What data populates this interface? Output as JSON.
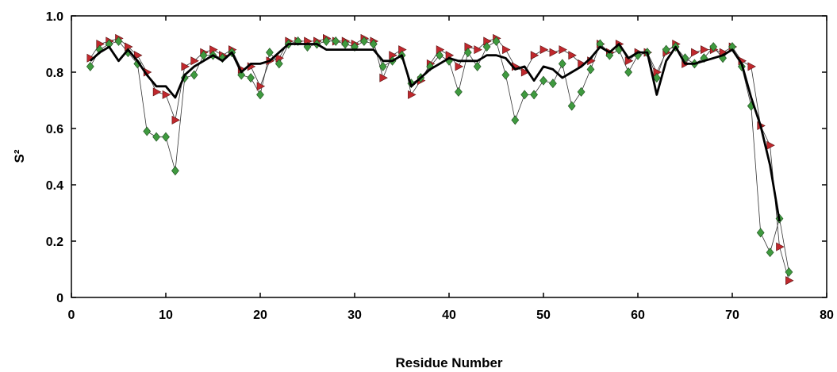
{
  "chart_data": {
    "type": "line",
    "xlabel": "Residue Number",
    "ylabel": "S²",
    "xlim": [
      0,
      80
    ],
    "ylim": [
      0,
      1.0
    ],
    "xticks": [
      "0",
      "10",
      "20",
      "30",
      "40",
      "50",
      "60",
      "70",
      "80"
    ],
    "yticks": [
      "0",
      "0.2",
      "0.4",
      "0.6",
      "0.8",
      "1.0"
    ],
    "grid": false,
    "legend": "none",
    "series": [
      {
        "style": "thick black line",
        "color": "#000000",
        "x": [
          2,
          3,
          4,
          5,
          6,
          7,
          8,
          9,
          10,
          11,
          12,
          13,
          14,
          15,
          16,
          17,
          18,
          19,
          20,
          21,
          22,
          23,
          24,
          25,
          26,
          27,
          28,
          29,
          30,
          31,
          32,
          33,
          34,
          35,
          36,
          37,
          38,
          39,
          40,
          41,
          42,
          43,
          44,
          45,
          46,
          47,
          48,
          49,
          50,
          51,
          52,
          53,
          54,
          55,
          56,
          57,
          58,
          59,
          60,
          61,
          62,
          63,
          64,
          65,
          66,
          67,
          68,
          69,
          70,
          71,
          72,
          73,
          74,
          75
        ],
        "y": [
          0.84,
          0.87,
          0.89,
          0.84,
          0.88,
          0.84,
          0.79,
          0.75,
          0.75,
          0.71,
          0.79,
          0.82,
          0.84,
          0.86,
          0.84,
          0.87,
          0.8,
          0.83,
          0.83,
          0.84,
          0.87,
          0.9,
          0.9,
          0.9,
          0.9,
          0.88,
          0.88,
          0.88,
          0.88,
          0.88,
          0.88,
          0.84,
          0.84,
          0.86,
          0.75,
          0.78,
          0.81,
          0.83,
          0.85,
          0.84,
          0.84,
          0.84,
          0.86,
          0.86,
          0.85,
          0.81,
          0.82,
          0.77,
          0.82,
          0.81,
          0.78,
          0.8,
          0.82,
          0.85,
          0.89,
          0.87,
          0.9,
          0.85,
          0.87,
          0.87,
          0.72,
          0.84,
          0.89,
          0.83,
          0.83,
          0.84,
          0.85,
          0.86,
          0.88,
          0.83,
          0.71,
          0.61,
          0.47,
          0.27
        ]
      },
      {
        "style": "green diamonds",
        "color": "#3f9a3f",
        "x": [
          2,
          3,
          4,
          5,
          6,
          7,
          8,
          9,
          10,
          11,
          12,
          13,
          14,
          15,
          16,
          17,
          18,
          19,
          20,
          21,
          22,
          23,
          24,
          25,
          26,
          27,
          28,
          29,
          30,
          31,
          32,
          33,
          34,
          35,
          36,
          37,
          38,
          39,
          40,
          41,
          42,
          43,
          44,
          45,
          46,
          47,
          48,
          49,
          50,
          51,
          52,
          53,
          54,
          55,
          56,
          57,
          58,
          59,
          60,
          61,
          62,
          63,
          64,
          65,
          66,
          67,
          68,
          69,
          70,
          71,
          72,
          73,
          74,
          75,
          76
        ],
        "y": [
          0.82,
          0.88,
          0.9,
          0.91,
          0.87,
          0.83,
          0.59,
          0.57,
          0.57,
          0.45,
          0.78,
          0.79,
          0.86,
          0.86,
          0.85,
          0.87,
          0.79,
          0.78,
          0.72,
          0.87,
          0.83,
          0.9,
          0.91,
          0.89,
          0.9,
          0.91,
          0.91,
          0.9,
          0.89,
          0.91,
          0.9,
          0.82,
          0.84,
          0.86,
          0.76,
          0.78,
          0.82,
          0.86,
          0.84,
          0.73,
          0.87,
          0.82,
          0.89,
          0.91,
          0.79,
          0.63,
          0.72,
          0.72,
          0.77,
          0.76,
          0.83,
          0.68,
          0.73,
          0.81,
          0.9,
          0.86,
          0.88,
          0.8,
          0.86,
          0.87,
          0.78,
          0.88,
          0.89,
          0.85,
          0.83,
          0.85,
          0.89,
          0.85,
          0.89,
          0.82,
          0.68,
          0.23,
          0.16,
          0.28,
          0.09
        ]
      },
      {
        "style": "red triangles",
        "color": "#c0282d",
        "x": [
          2,
          3,
          4,
          5,
          6,
          7,
          8,
          9,
          10,
          11,
          12,
          13,
          14,
          15,
          16,
          17,
          18,
          19,
          20,
          21,
          22,
          23,
          24,
          25,
          26,
          27,
          28,
          29,
          30,
          31,
          32,
          33,
          34,
          35,
          36,
          37,
          38,
          39,
          40,
          41,
          42,
          43,
          44,
          45,
          46,
          47,
          48,
          49,
          50,
          51,
          52,
          53,
          54,
          55,
          56,
          57,
          58,
          59,
          60,
          61,
          62,
          63,
          64,
          65,
          66,
          67,
          68,
          69,
          70,
          71,
          72,
          73,
          74,
          75,
          76
        ],
        "y": [
          0.85,
          0.9,
          0.91,
          0.92,
          0.89,
          0.86,
          0.8,
          0.73,
          0.72,
          0.63,
          0.82,
          0.84,
          0.87,
          0.88,
          0.86,
          0.88,
          0.81,
          0.82,
          0.75,
          0.84,
          0.85,
          0.91,
          0.91,
          0.91,
          0.91,
          0.92,
          0.91,
          0.91,
          0.9,
          0.92,
          0.91,
          0.78,
          0.86,
          0.88,
          0.72,
          0.77,
          0.83,
          0.88,
          0.86,
          0.82,
          0.89,
          0.88,
          0.91,
          0.92,
          0.88,
          0.82,
          0.8,
          0.86,
          0.88,
          0.87,
          0.88,
          0.86,
          0.83,
          0.84,
          0.9,
          0.87,
          0.9,
          0.84,
          0.87,
          0.87,
          0.8,
          0.87,
          0.9,
          0.83,
          0.87,
          0.88,
          0.88,
          0.87,
          0.89,
          0.84,
          0.82,
          0.61,
          0.54,
          0.18,
          0.06
        ]
      }
    ]
  }
}
